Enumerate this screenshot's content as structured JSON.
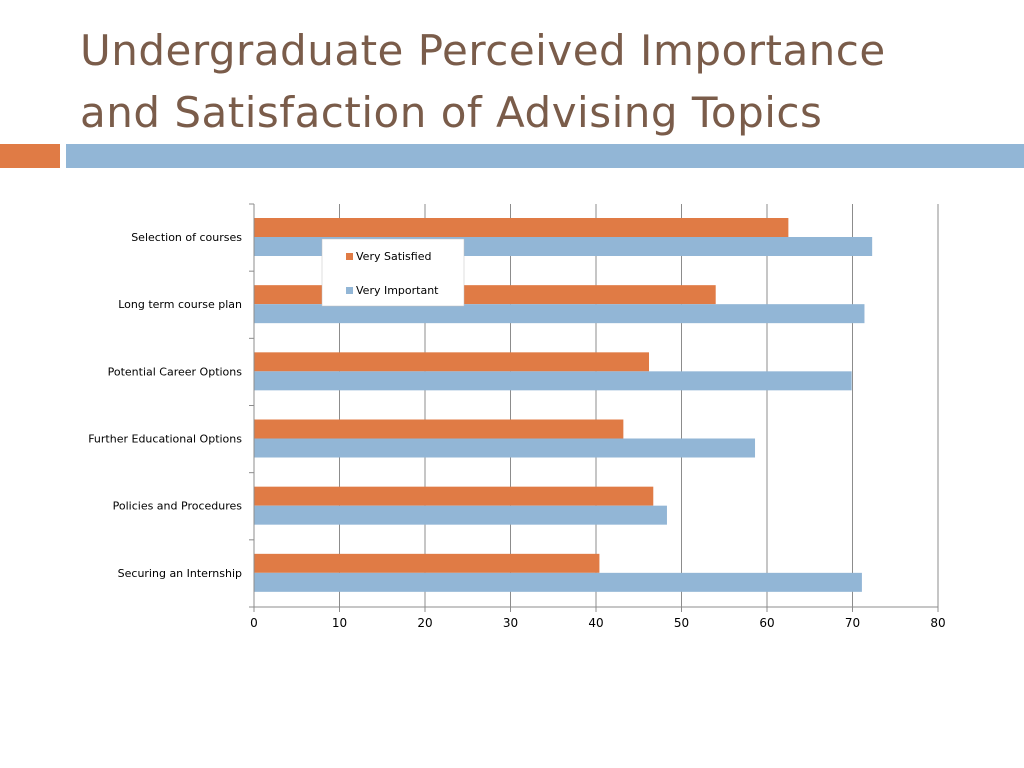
{
  "slide": {
    "title": "Undergraduate Perceived Importance and Satisfaction of Advising Topics"
  },
  "colors": {
    "title": "#7a5c4a",
    "accent_orange": "#e07b45",
    "accent_blue": "#92b6d6"
  },
  "chart_data": {
    "type": "bar",
    "orientation": "horizontal",
    "categories": [
      "Selection of courses",
      "Long term course plan",
      "Potential Career Options",
      "Further Educational Options",
      "Policies and Procedures",
      "Securing an Internship"
    ],
    "series": [
      {
        "name": "Very Satisfied",
        "color": "#e07b45",
        "values": [
          62.5,
          54,
          46.2,
          43.2,
          46.7,
          40.4
        ]
      },
      {
        "name": "Very Important",
        "color": "#92b6d6",
        "values": [
          72.3,
          71.4,
          69.9,
          58.6,
          48.3,
          71.1
        ]
      }
    ],
    "xlim": [
      0,
      80
    ],
    "xticks": [
      "0",
      "10",
      "20",
      "30",
      "40",
      "50",
      "60",
      "70",
      "80"
    ],
    "grid": true,
    "legend": "top-left"
  }
}
